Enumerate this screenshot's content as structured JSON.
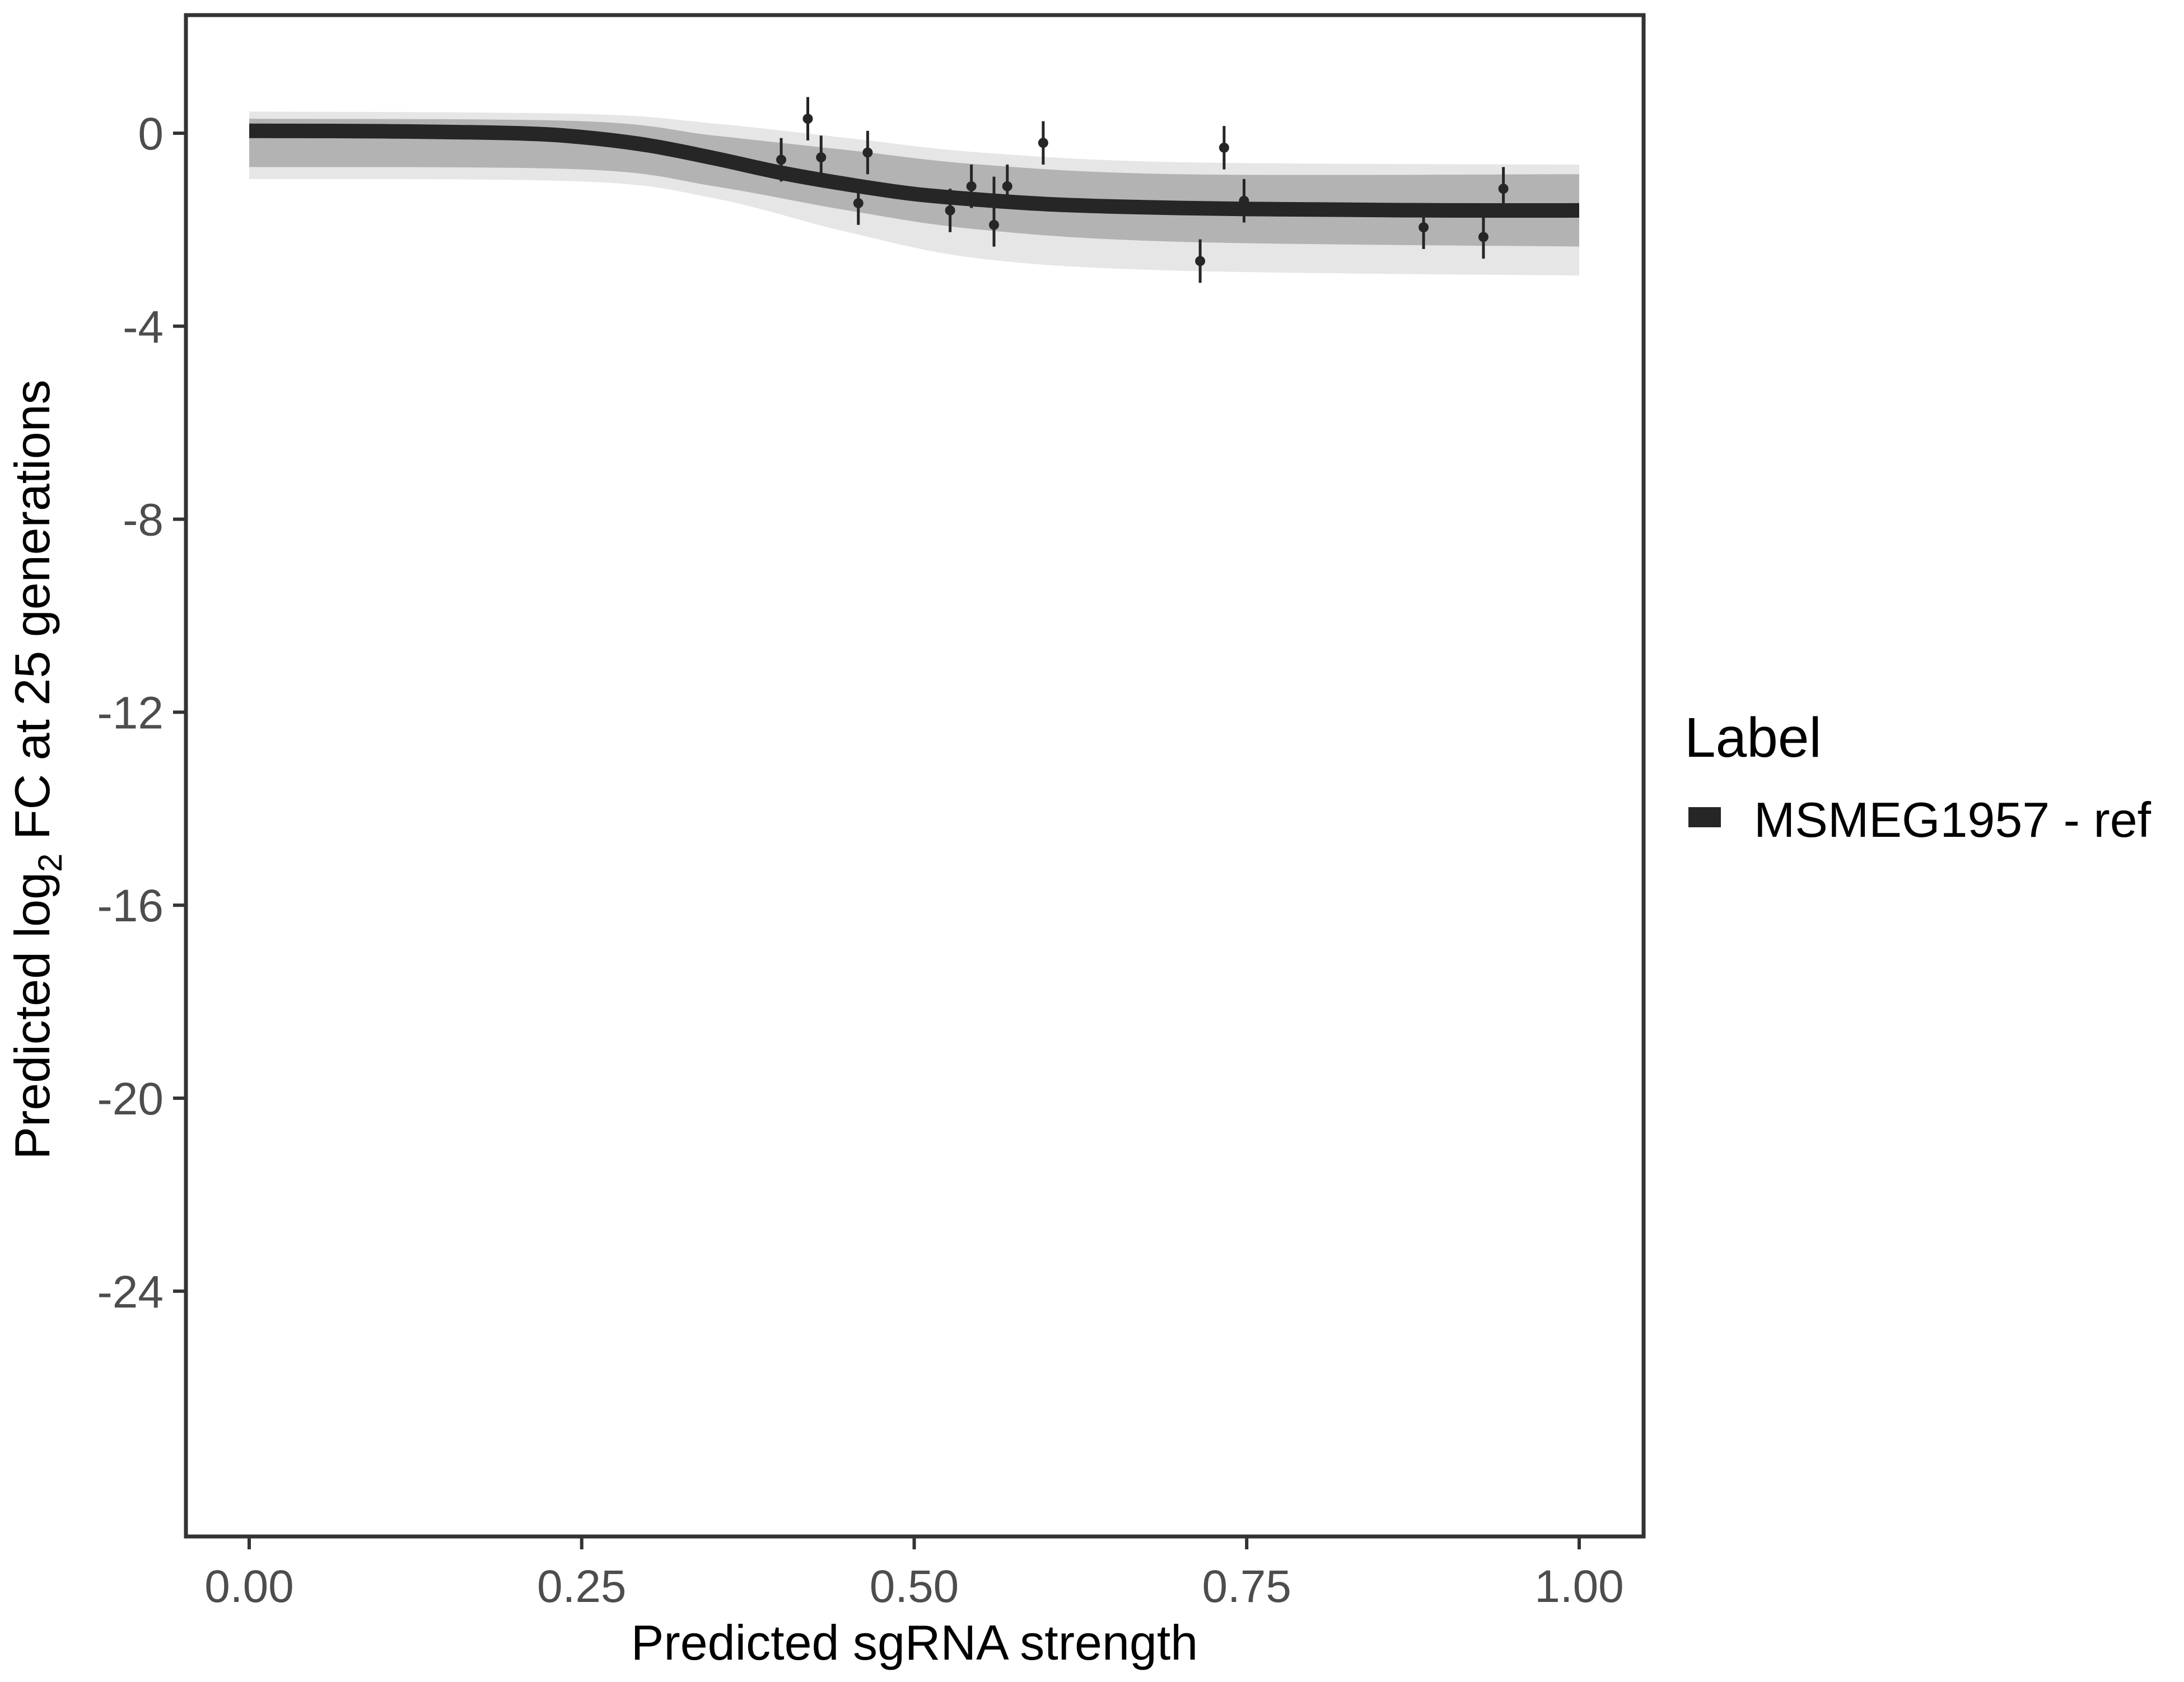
{
  "chart_data": {
    "type": "line",
    "title": "",
    "xlabel": "Predicted sgRNA strength",
    "ylabel": {
      "prefix": "Predicted  log",
      "subscript": "2",
      "suffix": " FC at 25 generations"
    },
    "xlim": [
      -0.1,
      1.0
    ],
    "ylim": [
      -29.5,
      2.5
    ],
    "x_ticks": [
      {
        "value": 0.0,
        "label": "0.00"
      },
      {
        "value": 0.25,
        "label": "0.25"
      },
      {
        "value": 0.5,
        "label": "0.50"
      },
      {
        "value": 0.75,
        "label": "0.75"
      },
      {
        "value": 1.0,
        "label": "1.00"
      }
    ],
    "y_ticks": [
      {
        "value": 0,
        "label": "0"
      },
      {
        "value": -4,
        "label": "-4"
      },
      {
        "value": -8,
        "label": "-8"
      },
      {
        "value": -12,
        "label": "-12"
      },
      {
        "value": -16,
        "label": "-16"
      },
      {
        "value": -20,
        "label": "-20"
      },
      {
        "value": -24,
        "label": "-24"
      }
    ],
    "grid": false,
    "legend": {
      "title": "Label",
      "position": "right",
      "entries": [
        {
          "label": "MSMEG1957 - ref",
          "color": "#262626"
        }
      ]
    },
    "fit_curve": {
      "name": "MSMEG1957 - ref",
      "color": "#262626",
      "x": [
        0.0,
        0.1,
        0.2,
        0.25,
        0.3,
        0.35,
        0.4,
        0.45,
        0.5,
        0.55,
        0.6,
        0.65,
        0.7,
        0.75,
        0.8,
        0.9,
        1.0
      ],
      "y": [
        0.05,
        0.04,
        0.0,
        -0.08,
        -0.25,
        -0.52,
        -0.82,
        -1.06,
        -1.26,
        -1.38,
        -1.47,
        -1.52,
        -1.55,
        -1.57,
        -1.58,
        -1.6,
        -1.6
      ]
    },
    "posterior_band": {
      "color": "#b0b0b0",
      "x": [
        0.0,
        0.25,
        0.35,
        0.45,
        0.55,
        0.7,
        1.0
      ],
      "upper": [
        0.3,
        0.25,
        -0.05,
        -0.35,
        -0.65,
        -0.85,
        -0.85
      ],
      "lower": [
        -0.7,
        -0.75,
        -1.1,
        -1.6,
        -2.0,
        -2.25,
        -2.35
      ]
    },
    "posterior_outer": {
      "color": "#e3e3e3",
      "x": [
        0.0,
        0.25,
        0.35,
        0.45,
        0.55,
        0.7,
        1.0
      ],
      "upper": [
        0.45,
        0.4,
        0.2,
        -0.1,
        -0.4,
        -0.6,
        -0.65
      ],
      "lower": [
        -0.95,
        -1.0,
        -1.35,
        -2.05,
        -2.6,
        -2.85,
        -2.95
      ]
    },
    "points": [
      {
        "x": 0.4,
        "y": -0.55,
        "err": 0.45
      },
      {
        "x": 0.42,
        "y": 0.3,
        "err": 0.45
      },
      {
        "x": 0.43,
        "y": -0.5,
        "err": 0.45
      },
      {
        "x": 0.458,
        "y": -1.45,
        "err": 0.45
      },
      {
        "x": 0.465,
        "y": -0.4,
        "err": 0.45
      },
      {
        "x": 0.527,
        "y": -1.6,
        "err": 0.45
      },
      {
        "x": 0.543,
        "y": -1.1,
        "err": 0.45
      },
      {
        "x": 0.56,
        "y": -1.35,
        "err": 0.45
      },
      {
        "x": 0.56,
        "y": -1.9,
        "err": 0.45
      },
      {
        "x": 0.57,
        "y": -1.1,
        "err": 0.45
      },
      {
        "x": 0.597,
        "y": -0.2,
        "err": 0.45
      },
      {
        "x": 0.715,
        "y": -2.65,
        "err": 0.45
      },
      {
        "x": 0.733,
        "y": -0.3,
        "err": 0.45
      },
      {
        "x": 0.748,
        "y": -1.4,
        "err": 0.45
      },
      {
        "x": 0.883,
        "y": -1.95,
        "err": 0.45
      },
      {
        "x": 0.928,
        "y": -2.15,
        "err": 0.45
      },
      {
        "x": 0.943,
        "y": -1.15,
        "err": 0.45
      }
    ]
  }
}
